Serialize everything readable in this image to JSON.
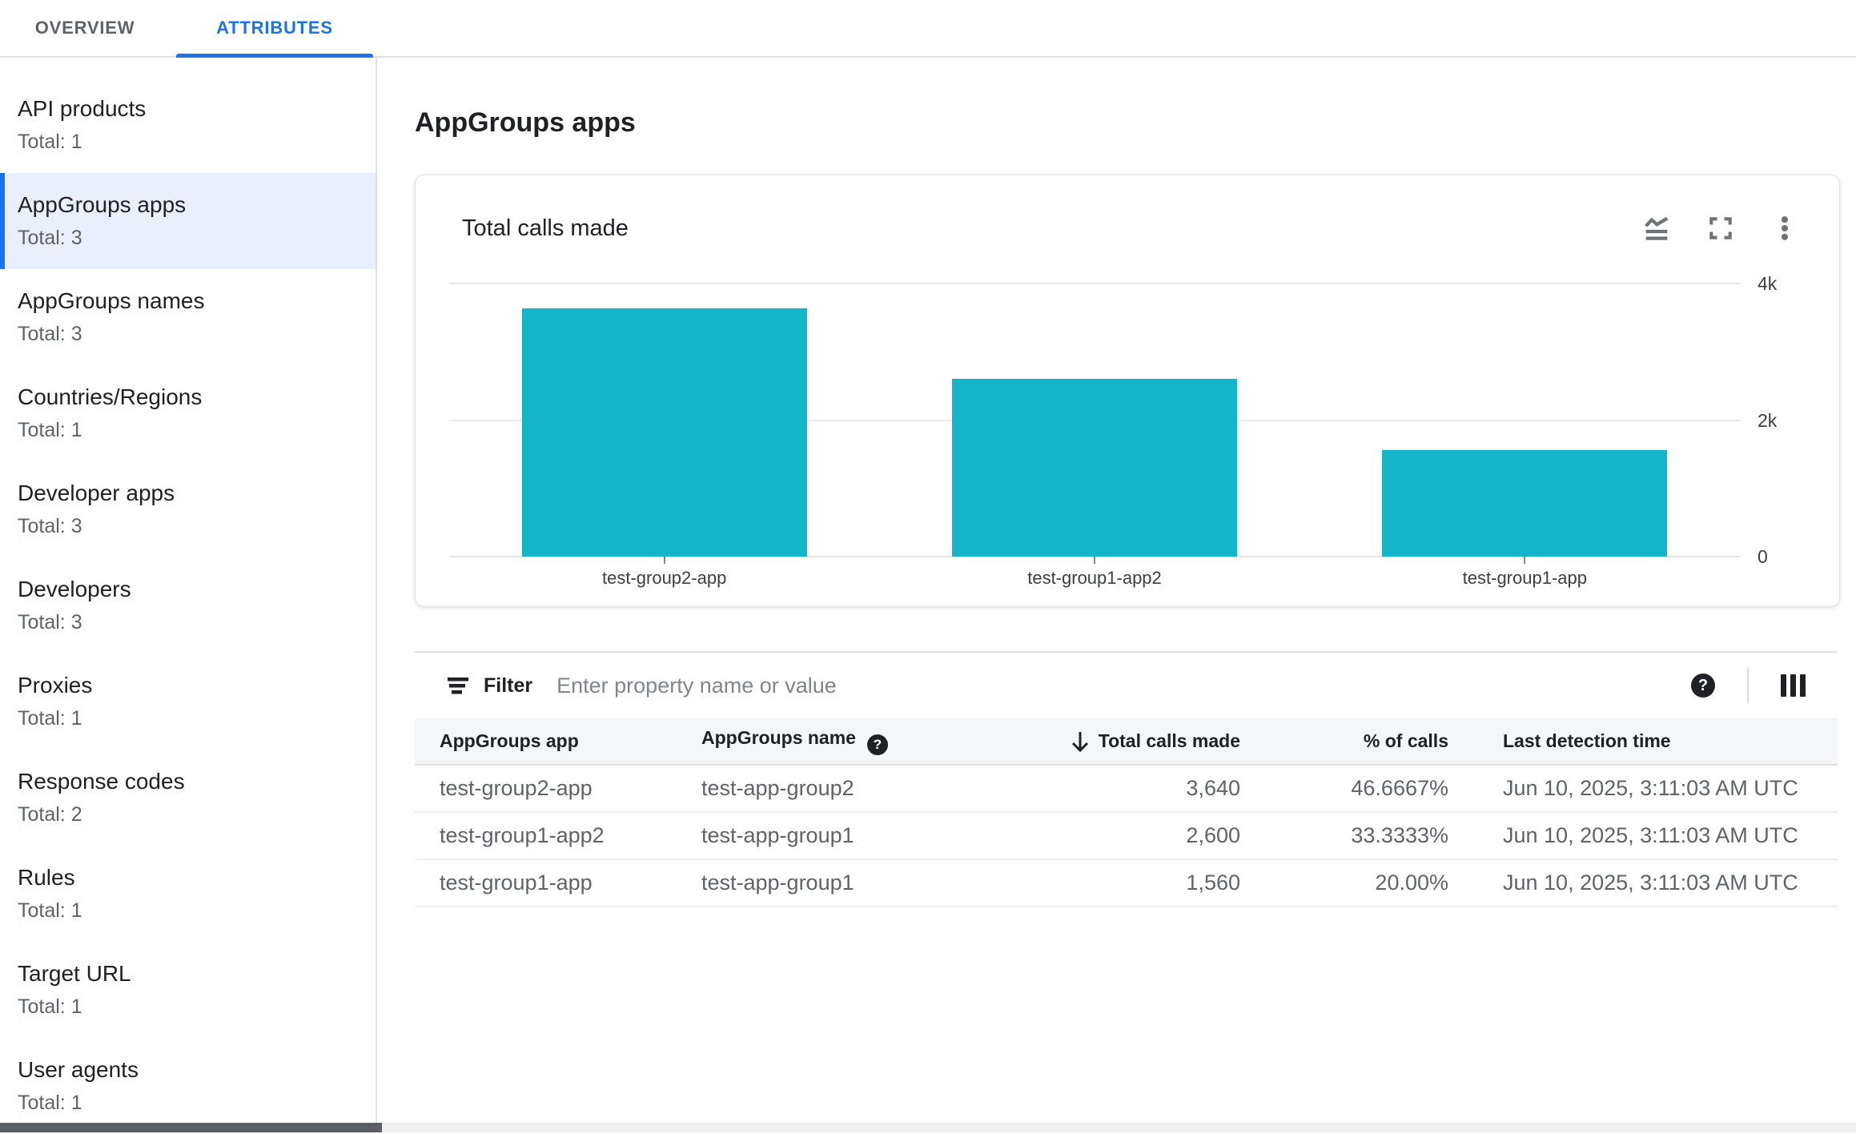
{
  "tabs": {
    "overview": "OVERVIEW",
    "attributes": "ATTRIBUTES"
  },
  "sidebar": {
    "items": [
      {
        "label": "API products",
        "total": "Total: 1",
        "selected": false
      },
      {
        "label": "AppGroups apps",
        "total": "Total: 3",
        "selected": true
      },
      {
        "label": "AppGroups names",
        "total": "Total: 3",
        "selected": false
      },
      {
        "label": "Countries/Regions",
        "total": "Total: 1",
        "selected": false
      },
      {
        "label": "Developer apps",
        "total": "Total: 3",
        "selected": false
      },
      {
        "label": "Developers",
        "total": "Total: 3",
        "selected": false
      },
      {
        "label": "Proxies",
        "total": "Total: 1",
        "selected": false
      },
      {
        "label": "Response codes",
        "total": "Total: 2",
        "selected": false
      },
      {
        "label": "Rules",
        "total": "Total: 1",
        "selected": false
      },
      {
        "label": "Target URL",
        "total": "Total: 1",
        "selected": false
      },
      {
        "label": "User agents",
        "total": "Total: 1",
        "selected": false
      }
    ]
  },
  "main": {
    "title": "AppGroups apps"
  },
  "chart_card": {
    "title": "Total calls made",
    "icons": [
      "area-chart",
      "fullscreen",
      "more-vert"
    ]
  },
  "chart_data": {
    "type": "bar",
    "title": "Total calls made",
    "categories": [
      "test-group2-app",
      "test-group1-app2",
      "test-group1-app"
    ],
    "values": [
      3640,
      2600,
      1560
    ],
    "xlabel": "",
    "ylabel": "",
    "ylim": [
      0,
      4000
    ],
    "yticks": [
      {
        "value": 4000,
        "label": "4k"
      },
      {
        "value": 2000,
        "label": "2k"
      },
      {
        "value": 0,
        "label": "0"
      }
    ],
    "bar_color": "#14b5cb",
    "grid": "horizontal",
    "legend_position": "none",
    "y_axis_side": "right"
  },
  "filter": {
    "label": "Filter",
    "placeholder": "Enter property name or value"
  },
  "table": {
    "columns": [
      {
        "label": "AppGroups app",
        "align": "left"
      },
      {
        "label": "AppGroups name",
        "align": "left",
        "help": true
      },
      {
        "label": "Total calls made",
        "align": "right",
        "sorted": "desc"
      },
      {
        "label": "% of calls",
        "align": "right"
      },
      {
        "label": "Last detection time",
        "align": "left"
      }
    ],
    "rows": [
      [
        "test-group2-app",
        "test-app-group2",
        "3,640",
        "46.6667%",
        "Jun 10, 2025, 3:11:03 AM UTC"
      ],
      [
        "test-group1-app2",
        "test-app-group1",
        "2,600",
        "33.3333%",
        "Jun 10, 2025, 3:11:03 AM UTC"
      ],
      [
        "test-group1-app",
        "test-app-group1",
        "1,560",
        "20.00%",
        "Jun 10, 2025, 3:11:03 AM UTC"
      ]
    ]
  },
  "icons": {
    "help": "?",
    "names": [
      "filter-icon",
      "help-icon",
      "view-columns-icon",
      "sort-desc-icon"
    ]
  },
  "colors": {
    "accent_blue": "#1a73e8",
    "selected_item_bg": "#e8f0fe",
    "bar_teal": "#14b5cb",
    "text_primary": "#202124",
    "text_secondary": "#5f6368",
    "divider": "#e0e0e0",
    "header_row_bg": "#f5f6f7"
  }
}
